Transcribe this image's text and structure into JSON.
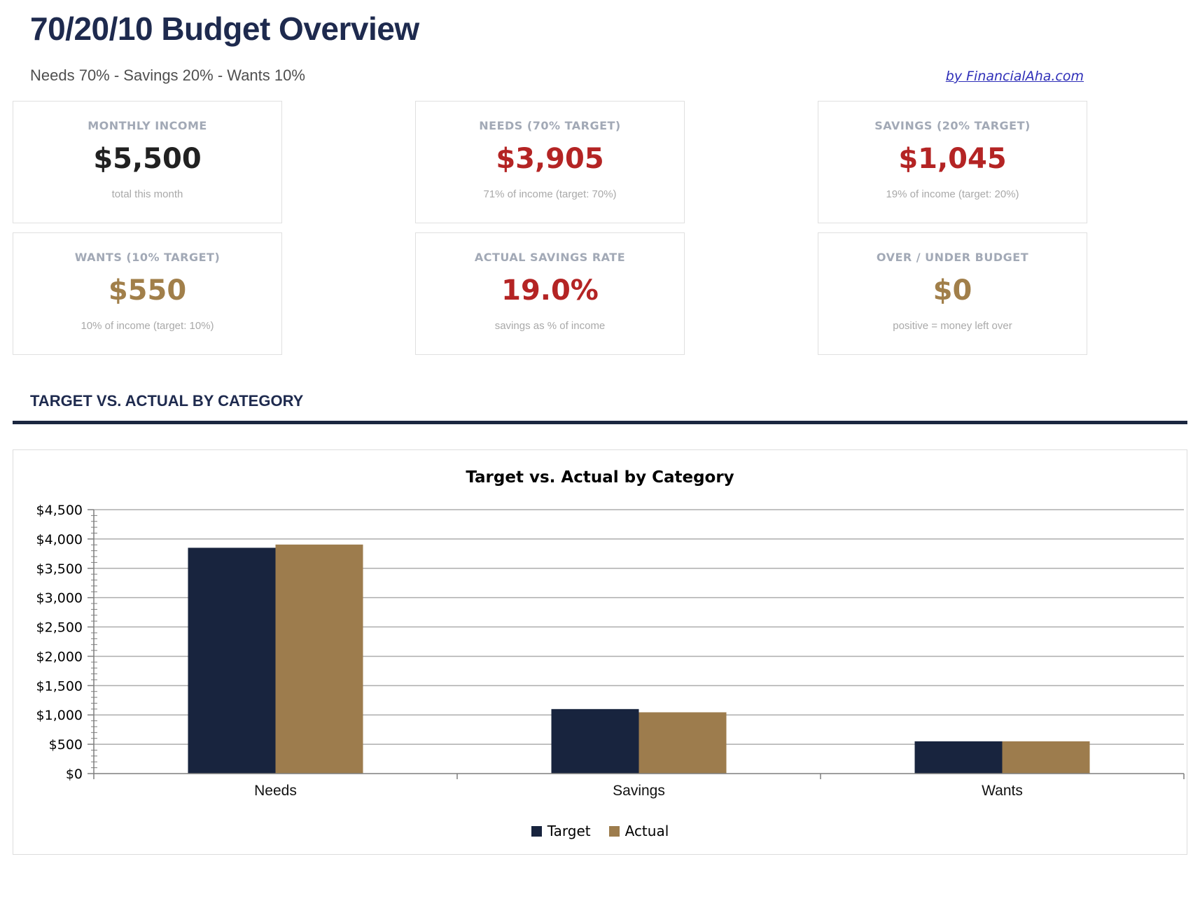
{
  "page": {
    "title": "70/20/10 Budget Overview",
    "subtitle": "Needs 70% - Savings 20% - Wants 10%",
    "link_label": "by FinancialAha.com",
    "section_title": "TARGET VS. ACTUAL BY CATEGORY"
  },
  "colors": {
    "heading_navy": "#1e2a4e",
    "navy_bar": "#18243e",
    "gold_bar": "#9d7c4d",
    "red_value": "#b42424",
    "gold_value": "#a17f4a",
    "dark_value": "#212121",
    "link_blue": "#2e2eb8",
    "grid_gray": "#adadad",
    "axis_gray": "#7f7f7f"
  },
  "cards": [
    {
      "label": "MONTHLY INCOME",
      "value": "$5,500",
      "subtext": "total this month",
      "value_color": "#212121"
    },
    {
      "label": "NEEDS (70% TARGET)",
      "value": "$3,905",
      "subtext": "71% of income (target: 70%)",
      "value_color": "#b42424"
    },
    {
      "label": "SAVINGS (20% TARGET)",
      "value": "$1,045",
      "subtext": "19% of income (target: 20%)",
      "value_color": "#b42424"
    },
    {
      "label": "WANTS (10% TARGET)",
      "value": "$550",
      "subtext": "10% of income (target: 10%)",
      "value_color": "#a17f4a"
    },
    {
      "label": "ACTUAL SAVINGS RATE",
      "value": "19.0%",
      "subtext": "savings as % of income",
      "value_color": "#b42424"
    },
    {
      "label": "OVER / UNDER BUDGET",
      "value": "$0",
      "subtext": "positive = money left over",
      "value_color": "#a17f4a"
    }
  ],
  "chart_data": {
    "type": "bar",
    "title": "Target vs. Actual by Category",
    "categories": [
      "Needs",
      "Savings",
      "Wants"
    ],
    "series": [
      {
        "name": "Target",
        "color": "#18243e",
        "values": [
          3850,
          1100,
          550
        ]
      },
      {
        "name": "Actual",
        "color": "#9d7c4d",
        "values": [
          3905,
          1045,
          550
        ]
      }
    ],
    "xlabel": "",
    "ylabel": "",
    "ylim": [
      0,
      4500
    ],
    "ytick_interval": 500,
    "yminor_interval": 100,
    "ytick_prefix": "$",
    "grid": true,
    "legend_position": "bottom"
  }
}
